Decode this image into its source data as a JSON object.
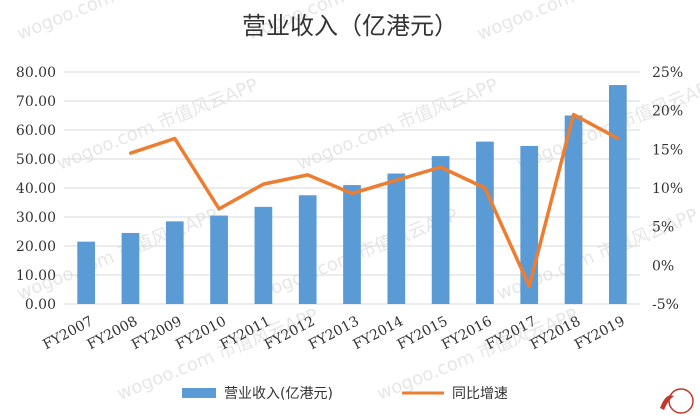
{
  "chart_data": {
    "type": "bar",
    "title": "营业收入（亿港元）",
    "categories": [
      "FY2007",
      "FY2008",
      "FY2009",
      "FY2010",
      "FY2011",
      "FY2012",
      "FY2013",
      "FY2014",
      "FY2015",
      "FY2016",
      "FY2017",
      "FY2018",
      "FY2019"
    ],
    "series": [
      {
        "name": "营业收入(亿港元)",
        "type": "bar",
        "axis": "left",
        "color": "#5b9bd5",
        "values": [
          21.5,
          24.5,
          28.5,
          30.5,
          33.5,
          37.5,
          41.0,
          45.0,
          51.0,
          56.0,
          54.5,
          65.0,
          75.5
        ]
      },
      {
        "name": "同比增速",
        "type": "line",
        "axis": "right",
        "color": "#ed7d31",
        "values": [
          null,
          14.5,
          16.4,
          7.3,
          10.5,
          11.7,
          9.3,
          11.0,
          12.7,
          10.0,
          -2.7,
          19.5,
          16.4
        ]
      }
    ],
    "y_left": {
      "ylim": [
        0,
        80
      ],
      "ticks": [
        0,
        10,
        20,
        30,
        40,
        50,
        60,
        70,
        80
      ],
      "tick_labels": [
        "0.00",
        "10.00",
        "20.00",
        "30.00",
        "40.00",
        "50.00",
        "60.00",
        "70.00",
        "80.00"
      ]
    },
    "y_right": {
      "ylim": [
        -5,
        25
      ],
      "ticks": [
        -5,
        0,
        5,
        10,
        15,
        20,
        25
      ],
      "tick_labels": [
        "-5%",
        "0%",
        "5%",
        "10%",
        "15%",
        "20%",
        "25%"
      ]
    },
    "grid": true,
    "legend_position": "bottom"
  },
  "watermark": {
    "text": "wogoo.com  市值风云APP",
    "color": "#e6e6e6"
  },
  "logo": {
    "text": "市值风云",
    "color": "#c0392b"
  }
}
